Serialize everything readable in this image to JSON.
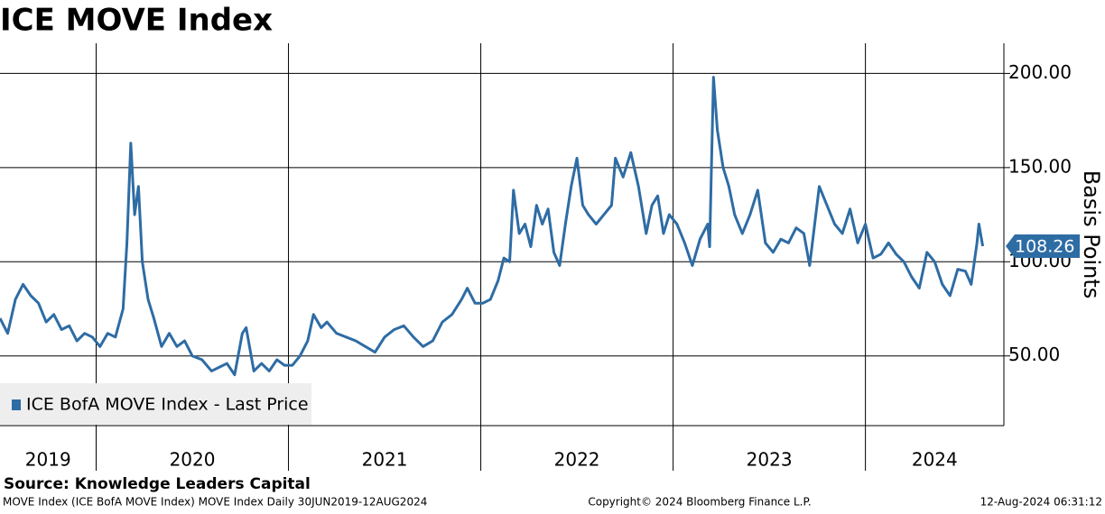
{
  "chart_data": {
    "type": "line",
    "title": "ICE MOVE Index",
    "ylabel": "Basis Points",
    "source": "Source: Knowledge Leaders Capital",
    "description": "MOVE Index (ICE BofA MOVE Index) MOVE Index  Daily 30JUN2019-12AUG2024",
    "copyright": "Copyright© 2024 Bloomberg Finance L.P.",
    "timestamp": "12-Aug-2024 06:31:12",
    "legend": "lower left",
    "grid": true,
    "xlim": [
      2019.5,
      2024.72
    ],
    "xticks": [
      2020,
      2021,
      2022,
      2023,
      2024
    ],
    "x_bands": [
      2019,
      2020,
      2021,
      2022,
      2023,
      2024
    ],
    "ylim": [
      13,
      216
    ],
    "yticks": [
      {
        "value": 50,
        "label": "50.00"
      },
      {
        "value": 100,
        "label": "100.00"
      },
      {
        "value": 150,
        "label": "150.00"
      },
      {
        "value": 200,
        "label": "200.00"
      }
    ],
    "x": [
      2019.5,
      2019.54,
      2019.58,
      2019.62,
      2019.66,
      2019.7,
      2019.74,
      2019.78,
      2019.82,
      2019.86,
      2019.9,
      2019.94,
      2019.98,
      2020.02,
      2020.06,
      2020.1,
      2020.14,
      2020.16,
      2020.18,
      2020.2,
      2020.22,
      2020.24,
      2020.27,
      2020.3,
      2020.34,
      2020.38,
      2020.42,
      2020.46,
      2020.5,
      2020.55,
      2020.6,
      2020.64,
      2020.68,
      2020.72,
      2020.76,
      2020.78,
      2020.82,
      2020.86,
      2020.9,
      2020.94,
      2020.98,
      2021.02,
      2021.06,
      2021.1,
      2021.13,
      2021.17,
      2021.2,
      2021.25,
      2021.3,
      2021.35,
      2021.4,
      2021.45,
      2021.5,
      2021.55,
      2021.6,
      2021.65,
      2021.7,
      2021.75,
      2021.8,
      2021.85,
      2021.9,
      2021.93,
      2021.97,
      2022.01,
      2022.05,
      2022.09,
      2022.12,
      2022.15,
      2022.17,
      2022.2,
      2022.23,
      2022.26,
      2022.29,
      2022.32,
      2022.35,
      2022.38,
      2022.41,
      2022.44,
      2022.47,
      2022.5,
      2022.53,
      2022.56,
      2022.6,
      2022.64,
      2022.68,
      2022.7,
      2022.74,
      2022.78,
      2022.82,
      2022.86,
      2022.89,
      2022.92,
      2022.95,
      2022.98,
      2023.02,
      2023.06,
      2023.1,
      2023.14,
      2023.18,
      2023.19,
      2023.21,
      2023.23,
      2023.26,
      2023.29,
      2023.32,
      2023.36,
      2023.4,
      2023.44,
      2023.48,
      2023.52,
      2023.56,
      2023.6,
      2023.64,
      2023.68,
      2023.71,
      2023.76,
      2023.8,
      2023.84,
      2023.88,
      2023.92,
      2023.96,
      2024.0,
      2024.04,
      2024.08,
      2024.12,
      2024.16,
      2024.2,
      2024.24,
      2024.28,
      2024.32,
      2024.36,
      2024.4,
      2024.44,
      2024.48,
      2024.52,
      2024.55,
      2024.58,
      2024.59,
      2024.61
    ],
    "series": [
      {
        "name": "ICE BofA MOVE Index - Last Price",
        "color": "#2e6ca4",
        "values": [
          70,
          62,
          80,
          88,
          82,
          78,
          68,
          72,
          64,
          66,
          58,
          62,
          60,
          55,
          62,
          60,
          75,
          110,
          163,
          125,
          140,
          100,
          80,
          70,
          55,
          62,
          55,
          58,
          50,
          48,
          42,
          44,
          46,
          40,
          62,
          65,
          42,
          46,
          42,
          48,
          45,
          45,
          50,
          58,
          72,
          65,
          68,
          62,
          60,
          58,
          55,
          52,
          60,
          64,
          66,
          60,
          55,
          58,
          68,
          72,
          80,
          86,
          78,
          78,
          80,
          90,
          102,
          100,
          138,
          115,
          120,
          108,
          130,
          120,
          128,
          105,
          98,
          120,
          140,
          155,
          130,
          125,
          120,
          125,
          130,
          155,
          145,
          158,
          140,
          115,
          130,
          135,
          115,
          125,
          120,
          110,
          98,
          112,
          120,
          108,
          198,
          170,
          150,
          140,
          125,
          115,
          125,
          138,
          110,
          105,
          112,
          110,
          118,
          115,
          98,
          140,
          130,
          120,
          115,
          128,
          110,
          120,
          102,
          104,
          110,
          104,
          100,
          92,
          86,
          105,
          100,
          88,
          82,
          96,
          95,
          88,
          110,
          120,
          108.26
        ]
      }
    ]
  }
}
